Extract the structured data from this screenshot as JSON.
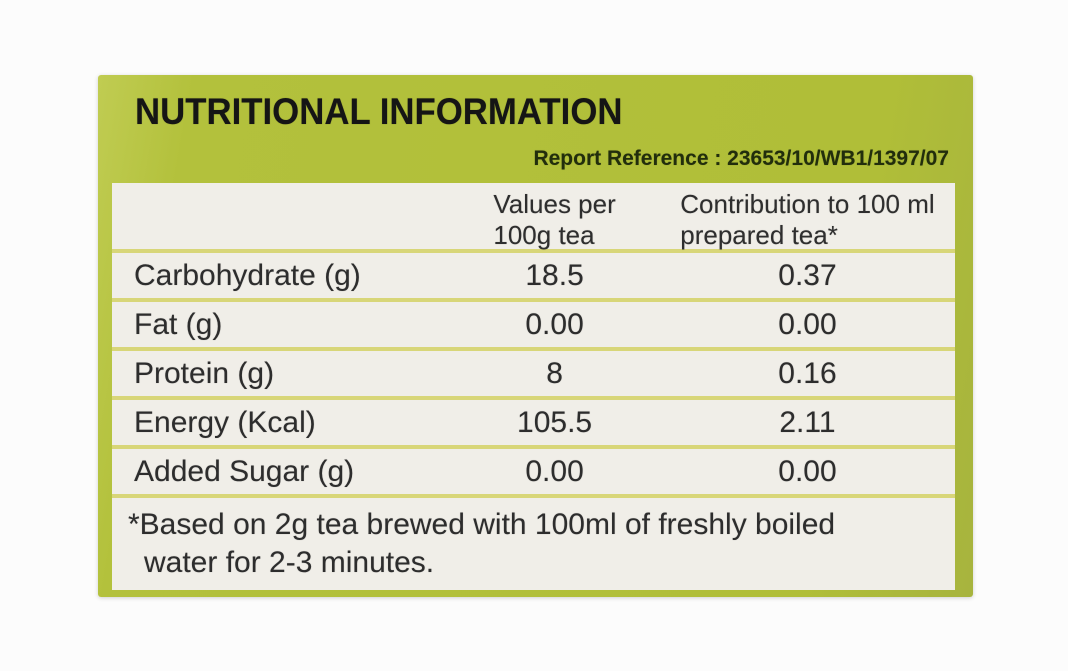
{
  "label": {
    "title": "NUTRITIONAL INFORMATION",
    "report_reference": "Report Reference : 23653/10/WB1/1397/07",
    "colors": {
      "panel_green": "#b2c03c",
      "table_background": "#f0eee8",
      "separator_line": "#d8d678",
      "title_text": "#151515",
      "body_text": "#2d2d2d"
    },
    "table": {
      "columns": [
        "",
        "Values per\n100g tea",
        "Contribution to 100 ml\nprepared tea*"
      ],
      "rows": [
        {
          "label": "Carbohydrate (g)",
          "per_100g": "18.5",
          "per_100ml": "0.37"
        },
        {
          "label": "Fat (g)",
          "per_100g": "0.00",
          "per_100ml": "0.00"
        },
        {
          "label": "Protein (g)",
          "per_100g": "8",
          "per_100ml": "0.16"
        },
        {
          "label": "Energy (Kcal)",
          "per_100g": "105.5",
          "per_100ml": "2.11"
        },
        {
          "label": "Added Sugar (g)",
          "per_100g": "0.00",
          "per_100ml": "0.00"
        }
      ],
      "footnote": "*Based on 2g tea brewed with 100ml of freshly boiled\nwater for 2-3 minutes."
    }
  }
}
